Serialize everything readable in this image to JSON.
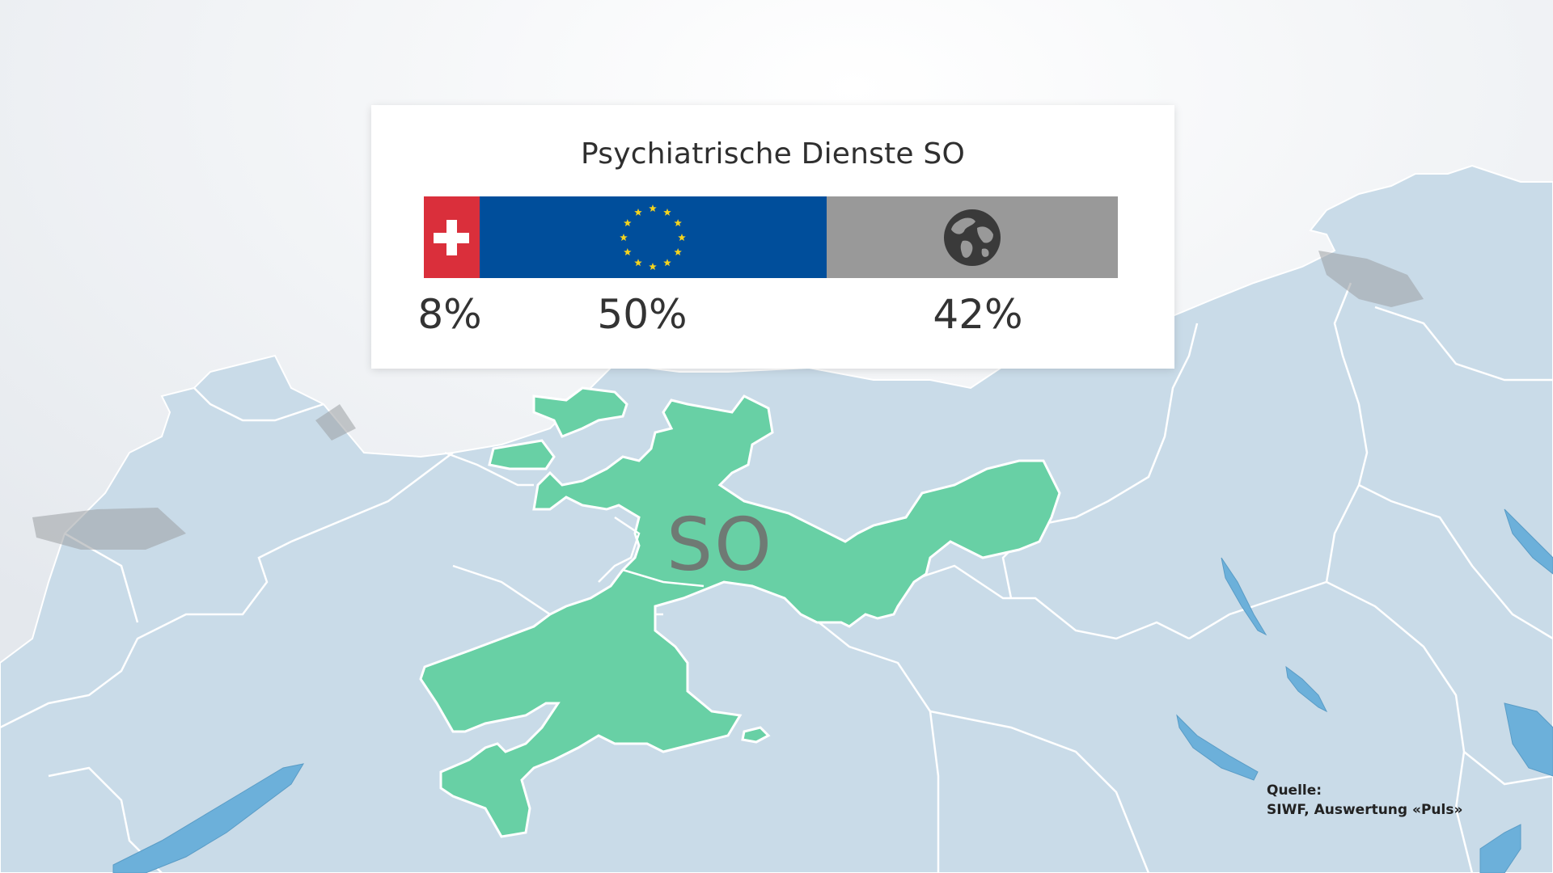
{
  "card": {
    "title": "Psychiatrische Dienste SO",
    "segments": [
      {
        "name": "switzerland",
        "percent": 8,
        "label": "8%",
        "icon": "swiss-flag-icon",
        "color": "#da2f3b"
      },
      {
        "name": "eu",
        "percent": 50,
        "label": "50%",
        "icon": "eu-stars-icon",
        "color": "#004e9b"
      },
      {
        "name": "world",
        "percent": 42,
        "label": "42%",
        "icon": "globe-icon",
        "color": "#999999"
      }
    ]
  },
  "map": {
    "region_label": "SO",
    "region_color": "#68d0a5",
    "land_color": "#c9dbe8",
    "lake_color": "#6cb0da"
  },
  "source": {
    "heading": "Quelle:",
    "text": "SIWF, Auswertung «Puls»"
  }
}
